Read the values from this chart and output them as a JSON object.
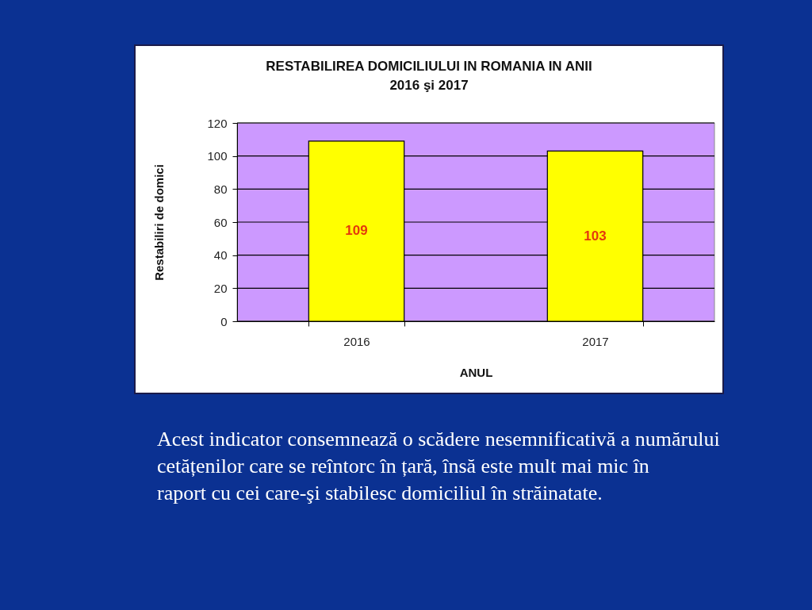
{
  "chart_data": {
    "type": "bar",
    "title": "RESTABILIREA DOMICILIULUI IN ROMANIA IN  ANII 2016 şi 2017",
    "xlabel": "ANUL",
    "ylabel": "Restabiliri de domici",
    "categories": [
      "2016",
      "2017"
    ],
    "values": [
      109,
      103
    ],
    "color": "#ffff00",
    "ylim": [
      0,
      120
    ],
    "yticks": [
      0,
      20,
      40,
      60,
      80,
      100,
      120
    ],
    "grid": "y",
    "data_labels": true,
    "annotations": [
      "Acest indicator consemnează o scădere nesemnificativă a numărului cetățenilor care se reîntorc în țară, însă este mult mai mic în raport cu cei care-şi stabilesc domiciliul în străinatate."
    ]
  }
}
